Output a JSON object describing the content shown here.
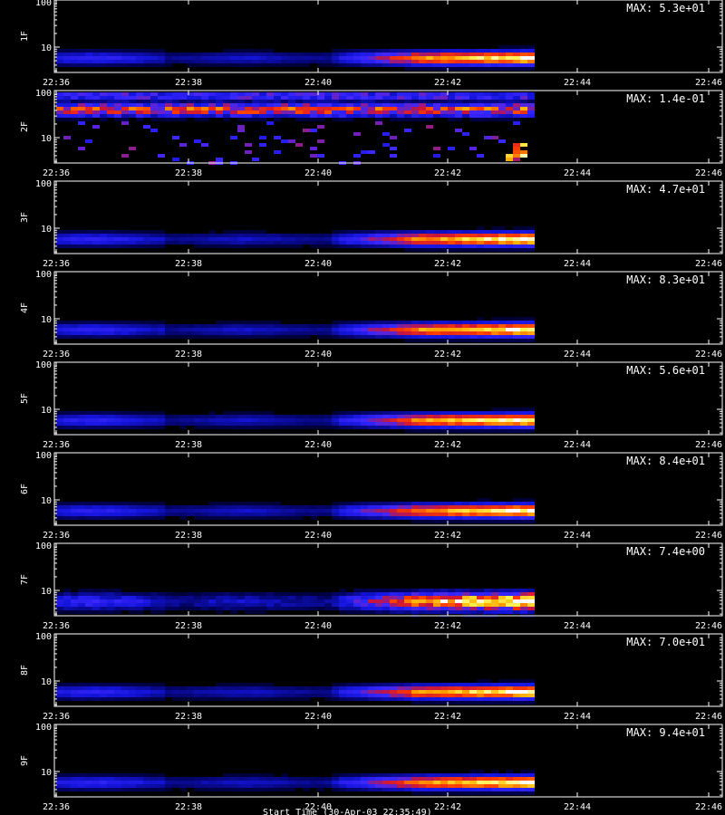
{
  "chart_data": {
    "type": "heatmap",
    "y_scale": "log",
    "y_ticks": [
      "100",
      "10"
    ],
    "x_ticks": [
      "22:36",
      "22:38",
      "22:40",
      "22:42",
      "22:44",
      "22:46"
    ],
    "xlabel": "Start Time (30-Apr-03 22:35:49)",
    "colors": {
      "background": "#000000",
      "axes": "#ffffff"
    },
    "panels": [
      {
        "label": "1F",
        "max_text": "MAX: 5.3e+01",
        "pattern": "band"
      },
      {
        "label": "2F",
        "max_text": "MAX: 1.4e-01",
        "pattern": "noise"
      },
      {
        "label": "3F",
        "max_text": "MAX: 4.7e+01",
        "pattern": "band"
      },
      {
        "label": "4F",
        "max_text": "MAX: 8.3e+01",
        "pattern": "band"
      },
      {
        "label": "5F",
        "max_text": "MAX: 5.6e+01",
        "pattern": "band"
      },
      {
        "label": "6F",
        "max_text": "MAX: 8.4e+01",
        "pattern": "band"
      },
      {
        "label": "7F",
        "max_text": "MAX: 7.4e+00",
        "pattern": "band-noisy"
      },
      {
        "label": "8F",
        "max_text": "MAX: 7.0e+01",
        "pattern": "band"
      },
      {
        "label": "9F",
        "max_text": "MAX: 9.4e+01",
        "pattern": "band"
      }
    ]
  }
}
